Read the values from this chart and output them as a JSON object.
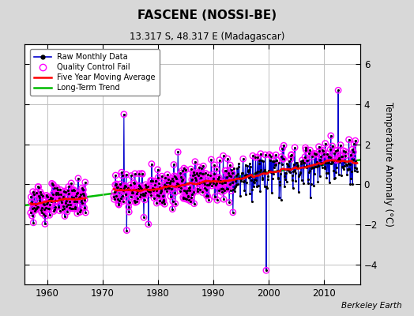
{
  "title": "FASCENE (NOSSI-BE)",
  "subtitle": "13.317 S, 48.317 E (Madagascar)",
  "ylabel": "Temperature Anomaly (°C)",
  "attribution": "Berkeley Earth",
  "xlim": [
    1956,
    2016.5
  ],
  "ylim": [
    -5,
    7
  ],
  "yticks": [
    -4,
    -2,
    0,
    2,
    4,
    6
  ],
  "xticks": [
    1960,
    1970,
    1980,
    1990,
    2000,
    2010
  ],
  "bg_color": "#d8d8d8",
  "plot_bg_color": "#ffffff",
  "grid_color": "#c0c0c0",
  "raw_line_color": "#0000cc",
  "raw_dot_color": "#000000",
  "qc_fail_color": "#ff00ff",
  "moving_avg_color": "#ff0000",
  "trend_color": "#00bb00",
  "long_term_slope": 0.0375,
  "long_term_intercept": -74.4,
  "seg1_start": 1957,
  "seg1_end": 1966,
  "seg2_start": 1972,
  "seg2_end": 2015,
  "noise1": 0.38,
  "noise2": 0.55
}
